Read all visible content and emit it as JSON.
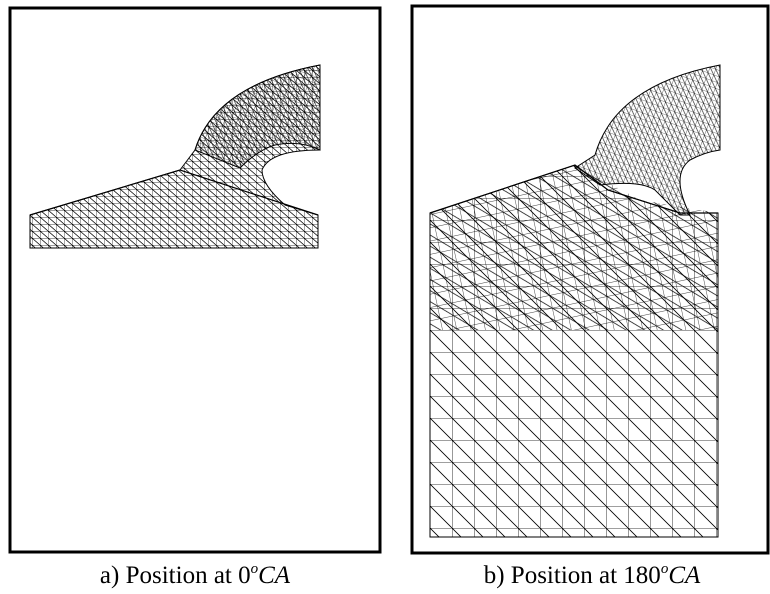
{
  "figure": {
    "panels": [
      {
        "caption": {
          "prefix": "a) Position at 0",
          "superscript": "o",
          "unit": "CA"
        }
      },
      {
        "caption": {
          "prefix": "b) Position at 180",
          "superscript": "o",
          "unit": "CA"
        }
      }
    ]
  }
}
